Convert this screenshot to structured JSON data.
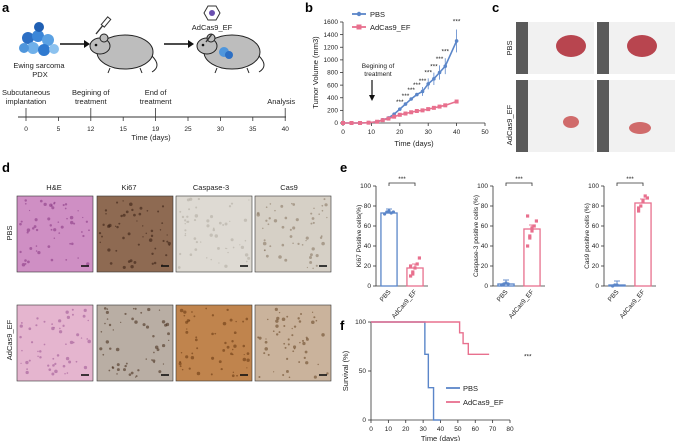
{
  "figure": {
    "panels": {
      "a": {
        "letter": "a",
        "pdx_label": [
          "Ewing sarcoma",
          "PDX"
        ],
        "virus_label": "AdCas9_EF",
        "timeline_events": [
          {
            "day": 0,
            "label": [
              "Subcutaneous",
              "implantation"
            ]
          },
          {
            "day": 12,
            "label": [
              "Begining of",
              "treatment"
            ]
          },
          {
            "day": 19,
            "label": [
              "End of",
              "treatment"
            ]
          },
          {
            "day": 40,
            "label": [
              "Analysis"
            ]
          }
        ],
        "timeline_ticks": [
          "0",
          "5",
          "12",
          "15",
          "19",
          "25",
          "30",
          "35",
          "40"
        ],
        "timeline_xlabel": "Time (days)"
      },
      "b": {
        "letter": "b",
        "annotation": [
          "Begining of",
          "treatment"
        ],
        "significance": "***"
      },
      "c": {
        "letter": "c",
        "row_labels": [
          "PBS",
          "AdCas9_EF"
        ]
      },
      "d": {
        "letter": "d",
        "columns": [
          "H&E",
          "Ki67",
          "Caspase-3",
          "Cas9"
        ],
        "rows": [
          "PBS",
          "AdCas9_EF"
        ]
      },
      "e": {
        "letter": "e",
        "significance": "***"
      },
      "f": {
        "letter": "f",
        "significance": "***"
      }
    },
    "colors": {
      "pbs": "#5b86c9",
      "adcas9": "#e8708e"
    }
  },
  "chart_data": [
    {
      "id": "b",
      "type": "line",
      "xlabel": "Time (days)",
      "ylabel": "Tumor Volume (mm3)",
      "xlim": [
        0,
        50
      ],
      "ylim": [
        0,
        1600
      ],
      "xticks": [
        0,
        10,
        20,
        30,
        40,
        50
      ],
      "yticks": [
        0,
        200,
        400,
        600,
        800,
        1000,
        1200,
        1400,
        1600
      ],
      "legend": "top-left",
      "series": [
        {
          "name": "PBS",
          "color": "#5b86c9",
          "x": [
            0,
            3,
            6,
            9,
            12,
            14,
            16,
            18,
            20,
            22,
            24,
            26,
            28,
            30,
            32,
            34,
            36,
            40
          ],
          "y": [
            0,
            0,
            0,
            5,
            20,
            50,
            80,
            140,
            220,
            300,
            380,
            450,
            500,
            620,
            700,
            800,
            900,
            1300
          ]
        },
        {
          "name": "AdCas9_EF",
          "color": "#e8708e",
          "x": [
            0,
            3,
            6,
            9,
            12,
            14,
            16,
            18,
            20,
            22,
            24,
            26,
            28,
            30,
            32,
            34,
            36,
            40
          ],
          "y": [
            0,
            0,
            0,
            5,
            20,
            45,
            70,
            100,
            130,
            150,
            170,
            190,
            200,
            220,
            240,
            260,
            280,
            340
          ]
        }
      ]
    },
    {
      "id": "e1",
      "type": "bar",
      "ylabel": "Ki67 Positive cells(%)",
      "categories": [
        "PBS",
        "AdCas9_EF"
      ],
      "values": [
        73,
        18
      ],
      "ylim": [
        0,
        100
      ],
      "yticks": [
        0,
        20,
        40,
        60,
        80,
        100
      ],
      "points": [
        [
          72,
          74,
          75,
          73,
          74
        ],
        [
          10,
          14,
          18,
          22,
          28,
          20,
          12
        ]
      ]
    },
    {
      "id": "e2",
      "type": "bar",
      "ylabel": "Caspase-3 positive cells (%)",
      "categories": [
        "PBS",
        "AdCas9_EF"
      ],
      "values": [
        2,
        57
      ],
      "ylim": [
        0,
        100
      ],
      "yticks": [
        0,
        20,
        40,
        60,
        80,
        100
      ],
      "points": [
        [
          1,
          2,
          3,
          2
        ],
        [
          40,
          50,
          55,
          60,
          65,
          70,
          48,
          58
        ]
      ]
    },
    {
      "id": "e3",
      "type": "bar",
      "ylabel": "Cas9 positive cells (%)",
      "categories": [
        "PBS",
        "AdCas9_EF"
      ],
      "values": [
        1,
        83
      ],
      "ylim": [
        0,
        100
      ],
      "yticks": [
        0,
        20,
        40,
        60,
        80,
        100
      ],
      "points": [
        [
          0,
          1,
          1
        ],
        [
          75,
          80,
          85,
          90,
          88,
          78
        ]
      ]
    },
    {
      "id": "f",
      "type": "line",
      "xlabel": "Time (days)",
      "ylabel": "Survival (%)",
      "xlim": [
        0,
        80
      ],
      "ylim": [
        0,
        100
      ],
      "xticks": [
        0,
        10,
        20,
        30,
        40,
        50,
        60,
        70,
        80
      ],
      "yticks": [
        0,
        50,
        100
      ],
      "legend": "bottom-right",
      "series": [
        {
          "name": "PBS",
          "color": "#5b86c9",
          "x": [
            0,
            31,
            31,
            33,
            33,
            36,
            36,
            40,
            40
          ],
          "y": [
            100,
            100,
            67,
            67,
            33,
            33,
            0,
            0,
            0
          ]
        },
        {
          "name": "AdCas9_EF",
          "color": "#e8708e",
          "x": [
            0,
            51,
            51,
            53,
            53,
            56,
            56,
            58,
            58,
            68
          ],
          "y": [
            100,
            100,
            89,
            89,
            78,
            78,
            67,
            67,
            67,
            67
          ]
        }
      ]
    }
  ]
}
